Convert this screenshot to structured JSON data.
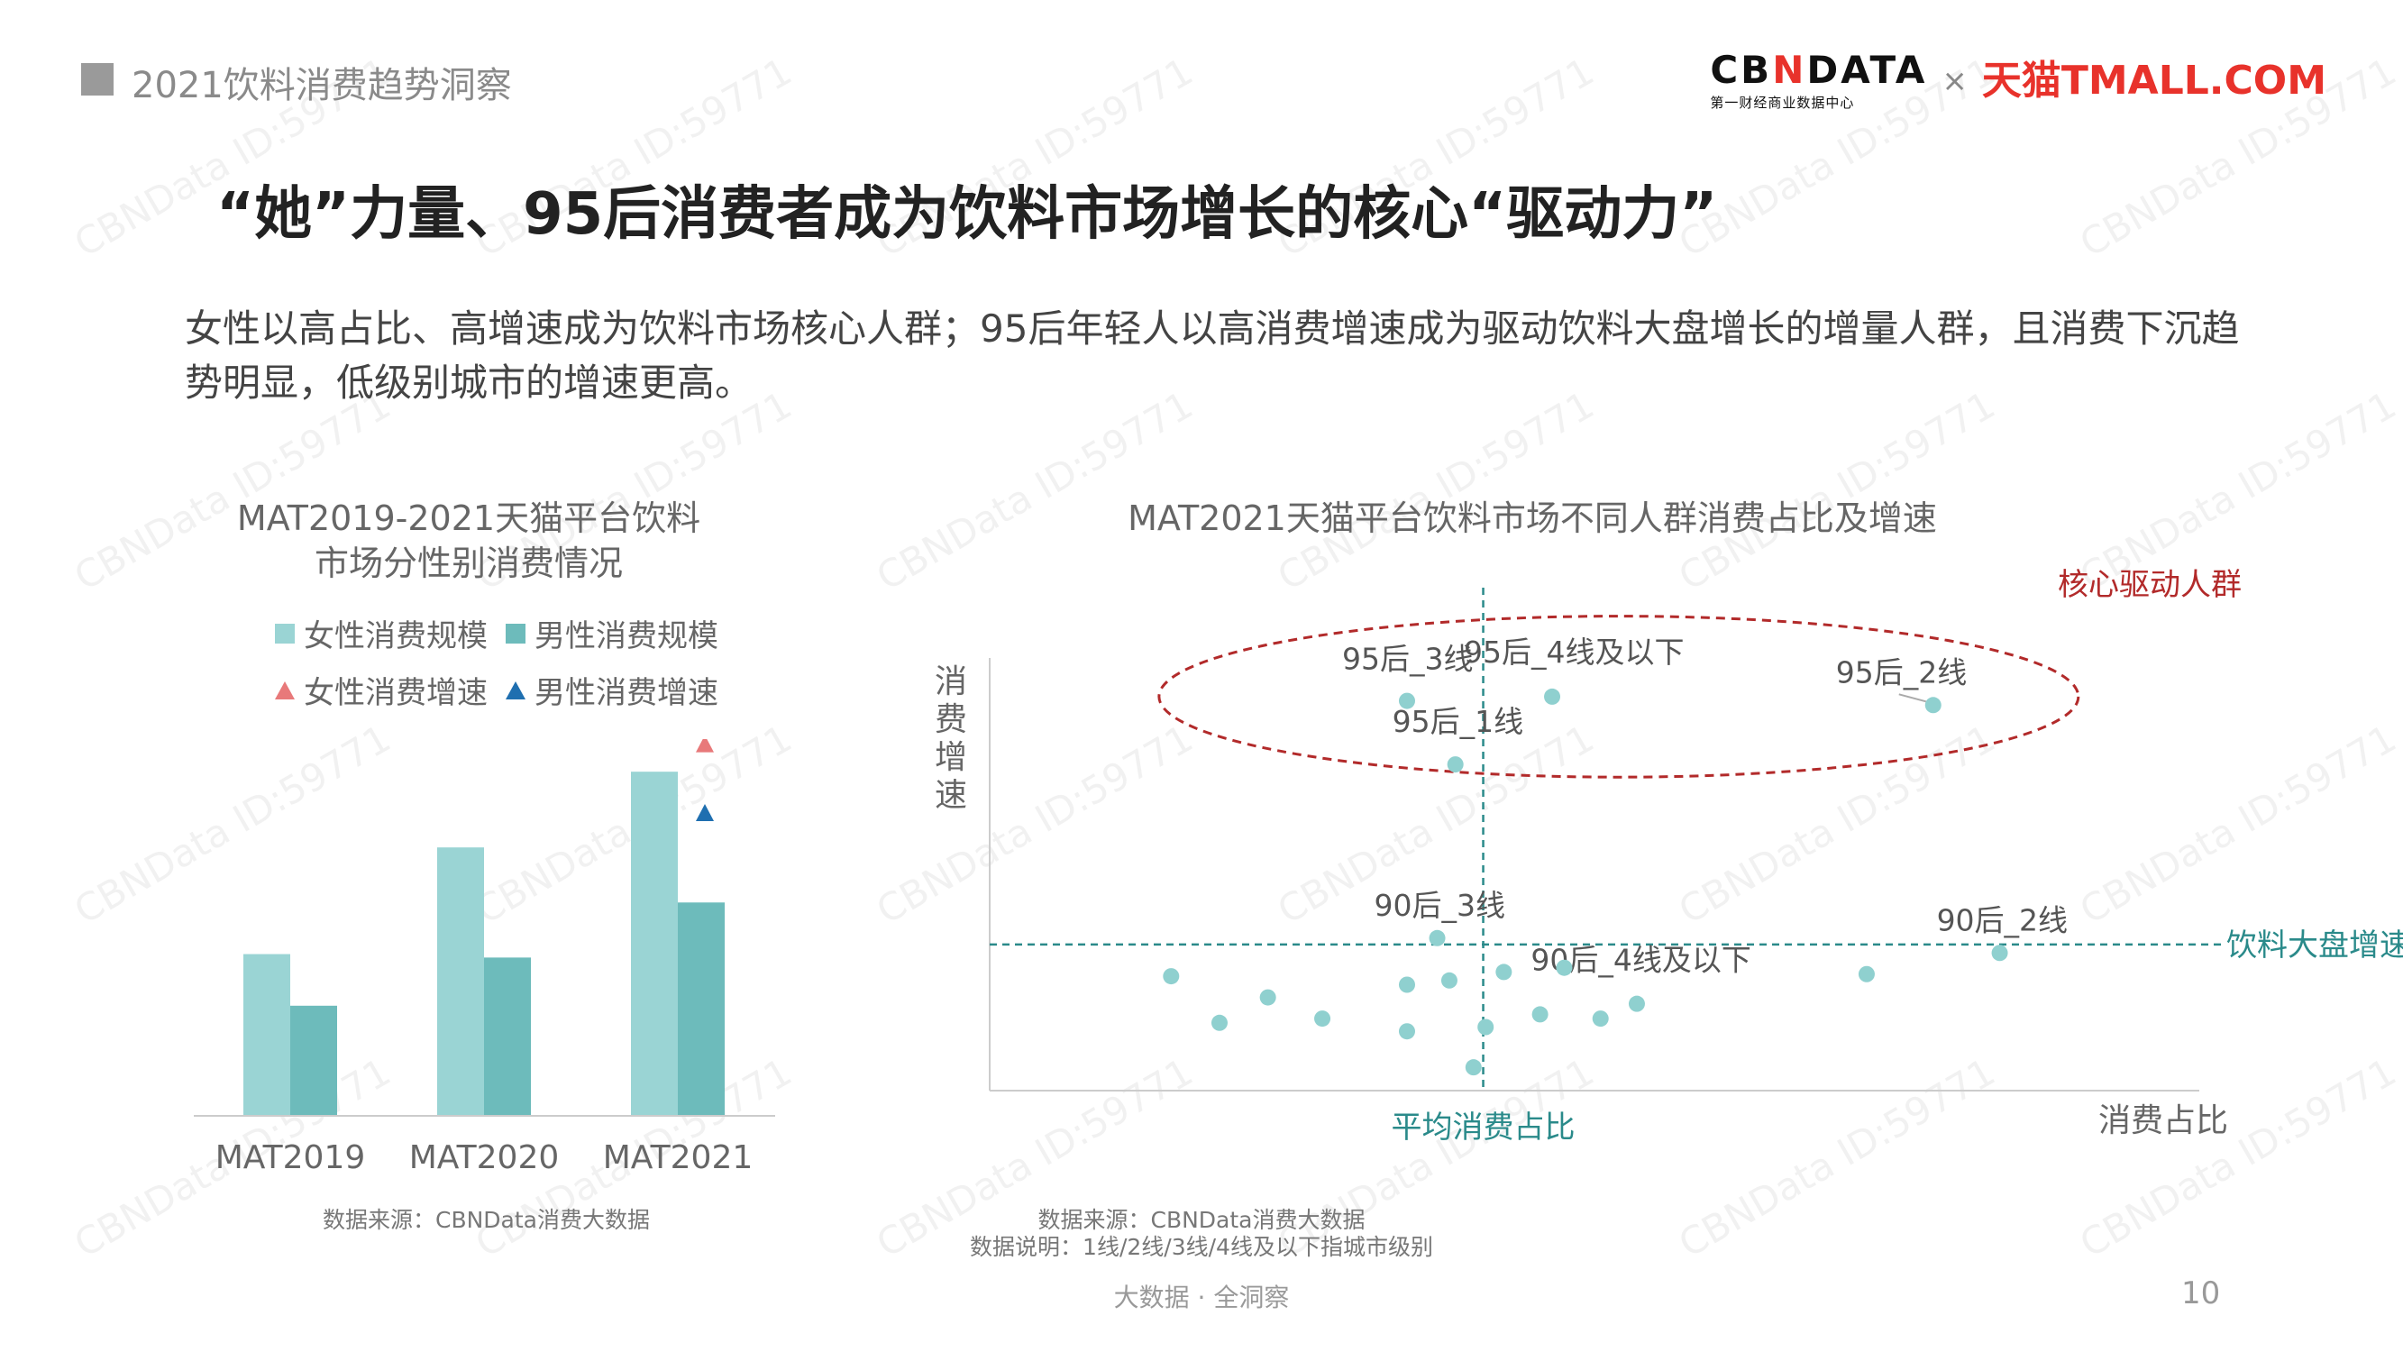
{
  "header": {
    "section_label": "2021饮料消费趋势洞察",
    "logo": {
      "cbn_part1": "CB",
      "cbn_x": "N",
      "cbn_part2": "DATA",
      "cbn_sub": "第一财经商业数据中心",
      "times": "×",
      "tmall": "天猫TMALL.COM"
    }
  },
  "title": "“她”力量、95后消费者成为饮料市场增长的核心“驱动力”",
  "description": "女性以高占比、高增速成为饮料市场核心人群；95后年轻人以高消费增速成为驱动饮料大盘增长的增量人群，且消费下沉趋势明显，低级别城市的增速更高。",
  "left_chart": {
    "title_line1": "MAT2019-2021天猫平台饮料",
    "title_line2": "市场分性别消费情况",
    "legend": {
      "female_size": "女性消费规模",
      "male_size": "男性消费规模",
      "female_growth": "女性消费增速",
      "male_growth": "男性消费增速"
    },
    "source": "数据来源：CBNData消费大数据"
  },
  "right_chart": {
    "title": "MAT2021天猫平台饮料市场不同人群消费占比及增速",
    "y_axis_label": "消费增速",
    "x_axis_label": "消费占比",
    "avg_share_label": "平均消费占比",
    "market_growth_label": "饮料大盘增速",
    "core_label": "核心驱动人群",
    "source_line1": "数据来源：CBNData消费大数据",
    "source_line2": "数据说明：1线/2线/3线/4线及以下指城市级别"
  },
  "footer": {
    "center": "大数据 · 全洞察",
    "page": "10"
  },
  "watermark": "CBNData ID:59771",
  "colors": {
    "female_bar": "#9ad4d4",
    "male_bar": "#6dbbbb",
    "female_growth": "#e8797a",
    "male_growth": "#1f6fb0",
    "point": "#8fd0cf",
    "ellipse": "#b22a2a",
    "ref_line": "#2a8a8a",
    "core_text": "#b22a2a"
  },
  "chart_data": [
    {
      "type": "bar",
      "categories": [
        "MAT2019",
        "MAT2020",
        "MAT2021"
      ],
      "series": [
        {
          "name": "女性消费规模",
          "values": [
            47,
            78,
            100
          ]
        },
        {
          "name": "男性消费规模",
          "values": [
            32,
            46,
            62
          ]
        }
      ],
      "markers": [
        {
          "name": "女性消费增速",
          "shape": "triangle",
          "category": "MAT2021",
          "value": 108
        },
        {
          "name": "男性消费增速",
          "shape": "triangle",
          "category": "MAT2021",
          "value": 88
        }
      ],
      "ylim": [
        0,
        110
      ],
      "grid": false,
      "legend": "top"
    },
    {
      "type": "scatter",
      "xlabel": "消费占比",
      "ylabel": "消费增速",
      "xlim": [
        0,
        100
      ],
      "ylim": [
        0,
        100
      ],
      "reference_lines": {
        "x": 40.8,
        "y": 34.5,
        "x_label": "平均消费占比",
        "y_label": "饮料大盘增速"
      },
      "highlight": {
        "label": "核心驱动人群",
        "shape": "ellipse",
        "cx": 52,
        "cy": 93,
        "rx": 38,
        "ry": 19
      },
      "points": [
        {
          "label": "95后_3线",
          "x": 34.5,
          "y": 92
        },
        {
          "label": "95后_4线及以下",
          "x": 46.5,
          "y": 93
        },
        {
          "label": "95后_2线",
          "x": 78,
          "y": 91
        },
        {
          "label": "95后_1线",
          "x": 38.5,
          "y": 77
        },
        {
          "label": "90后_3线",
          "x": 37,
          "y": 36
        },
        {
          "label": "90后_4线及以下",
          "x": 42.5,
          "y": 28
        },
        {
          "label": "90后_2线",
          "x": 83.5,
          "y": 32.5
        },
        {
          "label": "",
          "x": 72.5,
          "y": 27.5
        },
        {
          "label": "",
          "x": 15,
          "y": 27
        },
        {
          "label": "",
          "x": 19,
          "y": 16
        },
        {
          "label": "",
          "x": 23,
          "y": 22
        },
        {
          "label": "",
          "x": 27.5,
          "y": 17
        },
        {
          "label": "",
          "x": 34.5,
          "y": 25
        },
        {
          "label": "",
          "x": 34.5,
          "y": 14
        },
        {
          "label": "",
          "x": 38,
          "y": 26
        },
        {
          "label": "",
          "x": 41,
          "y": 15
        },
        {
          "label": "",
          "x": 40,
          "y": 5.5
        },
        {
          "label": "",
          "x": 45.5,
          "y": 18
        },
        {
          "label": "",
          "x": 47.5,
          "y": 29
        },
        {
          "label": "",
          "x": 50.5,
          "y": 17
        },
        {
          "label": "",
          "x": 53.5,
          "y": 20.5
        }
      ]
    }
  ]
}
